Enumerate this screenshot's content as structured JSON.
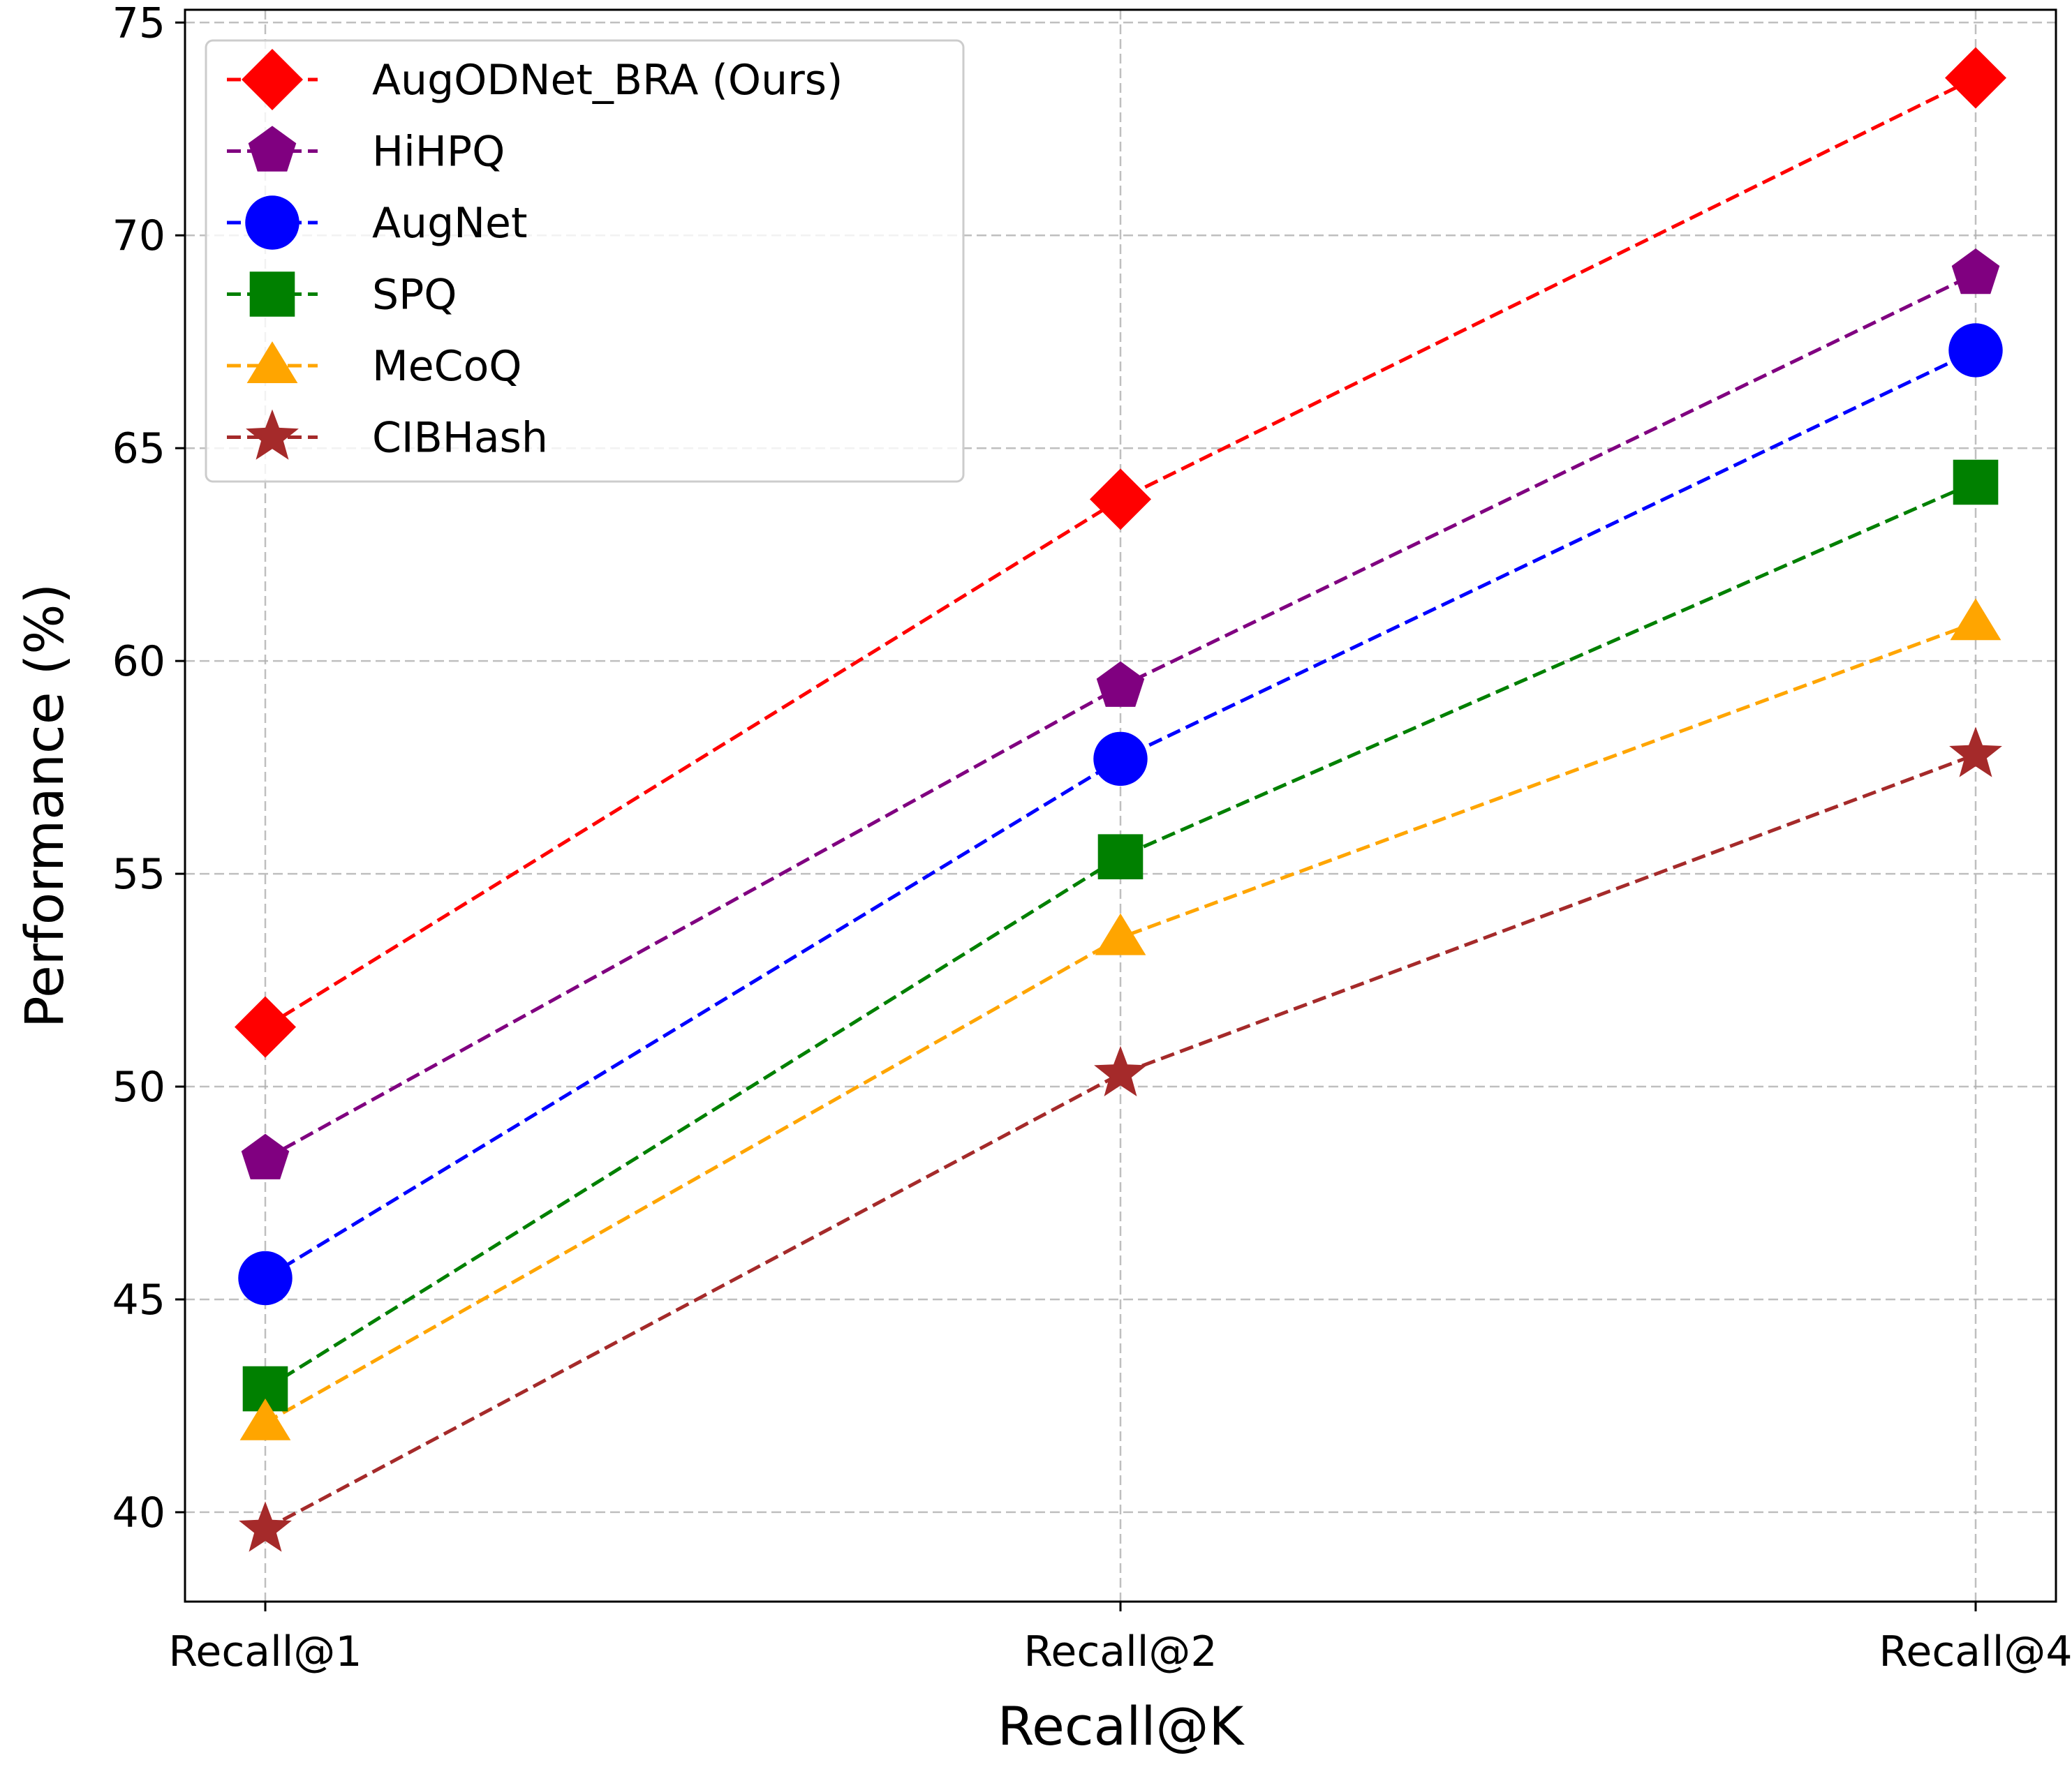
{
  "chart_data": {
    "type": "line",
    "title": "",
    "xlabel": "Recall@K",
    "ylabel": "Performance (%)",
    "categories": [
      "Recall@1",
      "Recall@2",
      "Recall@4"
    ],
    "ylim": [
      37.9,
      75.3
    ],
    "yticks": [
      40,
      45,
      50,
      55,
      60,
      65,
      70,
      75
    ],
    "grid": true,
    "legend_position": "top-left",
    "series": [
      {
        "name": "AugODNet_BRA (Ours)",
        "values": [
          51.4,
          63.8,
          73.7
        ],
        "color": "#ff0000",
        "marker": "diamond"
      },
      {
        "name": "HiHPQ",
        "values": [
          48.3,
          59.4,
          69.1
        ],
        "color": "#800080",
        "marker": "pentagon"
      },
      {
        "name": "AugNet",
        "values": [
          45.5,
          57.7,
          67.3
        ],
        "color": "#0000ff",
        "marker": "circle"
      },
      {
        "name": "SPQ",
        "values": [
          42.9,
          55.4,
          64.2
        ],
        "color": "#008000",
        "marker": "square"
      },
      {
        "name": "MeCoQ",
        "values": [
          42.1,
          53.5,
          60.9
        ],
        "color": "#ffa500",
        "marker": "triangle"
      },
      {
        "name": "CIBHash",
        "values": [
          39.6,
          50.3,
          57.8
        ],
        "color": "#a52a2a",
        "marker": "star"
      }
    ]
  }
}
